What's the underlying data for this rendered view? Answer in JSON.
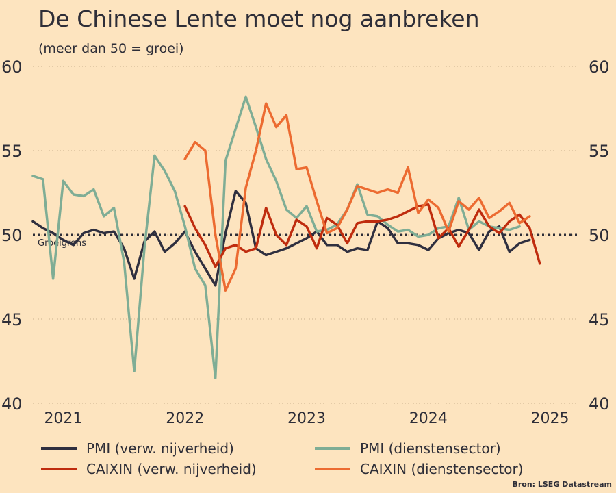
{
  "chart_data": {
    "type": "line",
    "title": "De Chinese Lente moet nog aanbreken",
    "subtitle": "(meer dan 50 = groei)",
    "ylim": [
      40,
      60
    ],
    "yticks": [
      40,
      45,
      50,
      55,
      60
    ],
    "xlim": [
      2020.75,
      2025.25
    ],
    "xticks": [
      {
        "label": "2021",
        "x": 2021.0
      },
      {
        "label": "2022",
        "x": 2022.0
      },
      {
        "label": "2023",
        "x": 2023.0
      },
      {
        "label": "2024",
        "x": 2024.0
      },
      {
        "label": "2025",
        "x": 2025.0
      }
    ],
    "grid": "horizontal dotted",
    "reference_line": {
      "y": 50,
      "label": "Groeigrens"
    },
    "series": [
      {
        "name": "PMI (verw. nijverheid)",
        "color": "#2f2f3f",
        "start": 2020.75,
        "values": [
          50.8,
          50.4,
          50.1,
          49.7,
          49.4,
          50.1,
          50.3,
          50.1,
          50.2,
          49.2,
          47.4,
          49.6,
          50.2,
          49.0,
          49.5,
          50.2,
          49.0,
          48.0,
          47.0,
          50.1,
          52.6,
          51.9,
          49.2,
          48.8,
          49.0,
          49.2,
          49.5,
          49.8,
          50.2,
          49.4,
          49.4,
          49.0,
          49.2,
          49.1,
          50.8,
          50.4,
          49.5,
          49.5,
          49.4,
          49.1,
          49.8,
          50.1,
          50.3,
          50.1,
          49.1,
          50.2,
          50.5,
          49.0,
          49.5,
          49.7
        ]
      },
      {
        "name": "PMI (dienstensector)",
        "color": "#7fad95",
        "start": 2020.75,
        "values": [
          53.5,
          53.3,
          47.4,
          53.2,
          52.4,
          52.3,
          52.7,
          51.1,
          51.6,
          48.4,
          41.9,
          49.2,
          54.7,
          53.8,
          52.6,
          50.5,
          48.0,
          47.0,
          41.5,
          54.4,
          56.3,
          58.2,
          56.4,
          54.5,
          53.2,
          51.5,
          51.0,
          51.7,
          50.2,
          50.3,
          50.6,
          51.5,
          53.0,
          51.2,
          51.1,
          50.6,
          50.2,
          50.3,
          49.9,
          50.0,
          50.4,
          50.5,
          52.2,
          50.3,
          50.8,
          50.5,
          50.4,
          50.3,
          50.5
        ]
      },
      {
        "name": "CAIXIN (verw. nijverheid)",
        "color": "#bf2c0e",
        "start": 2022.0,
        "values": [
          51.7,
          50.4,
          49.4,
          48.1,
          49.2,
          49.4,
          49.0,
          49.2,
          51.6,
          50.0,
          49.4,
          50.9,
          50.5,
          49.2,
          51.0,
          50.6,
          49.5,
          50.7,
          50.8,
          50.8,
          50.9,
          51.1,
          51.4,
          51.7,
          51.8,
          49.8,
          50.4,
          49.3,
          50.3,
          51.5,
          50.5,
          50.1,
          50.8,
          51.2,
          50.4,
          48.3
        ]
      },
      {
        "name": "CAIXIN (dienstensector)",
        "color": "#ec6b31",
        "start": 2022.0,
        "values": [
          54.5,
          55.5,
          55.0,
          50.0,
          46.7,
          48.0,
          52.8,
          55.0,
          57.8,
          56.4,
          57.1,
          53.9,
          54.0,
          52.0,
          50.1,
          50.4,
          51.5,
          52.9,
          52.7,
          52.5,
          52.7,
          52.5,
          54.0,
          51.3,
          52.1,
          51.6,
          50.2,
          52.0,
          51.5,
          52.2,
          51.0,
          51.4,
          51.9,
          50.7,
          51.1
        ]
      }
    ]
  },
  "source": "Bron: LSEG Datastream"
}
